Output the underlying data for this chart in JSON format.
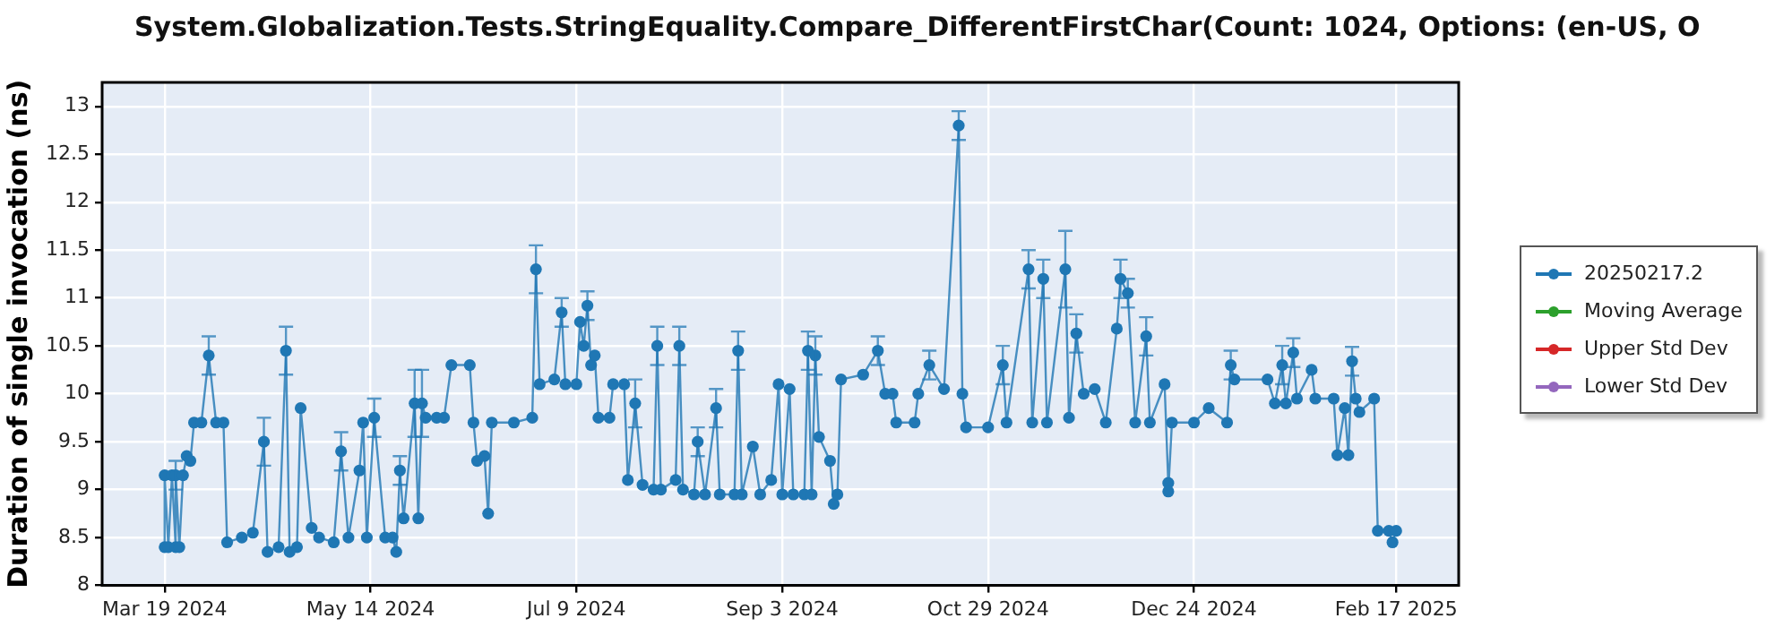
{
  "chart_data": {
    "type": "line",
    "title": "System.Globalization.Tests.StringEquality.Compare_DifferentFirstChar(Count: 1024, Options: (en-US, O",
    "ylabel": "Duration of single invocation (ns)",
    "x": [
      "2024-03-19",
      "2024-03-19",
      "2024-03-20",
      "2024-03-21",
      "2024-03-22",
      "2024-03-22",
      "2024-03-23",
      "2024-03-24",
      "2024-03-25",
      "2024-03-26",
      "2024-03-27",
      "2024-03-29",
      "2024-03-31",
      "2024-04-02",
      "2024-04-04",
      "2024-04-05",
      "2024-04-09",
      "2024-04-12",
      "2024-04-15",
      "2024-04-16",
      "2024-04-19",
      "2024-04-21",
      "2024-04-22",
      "2024-04-24",
      "2024-04-25",
      "2024-04-28",
      "2024-04-30",
      "2024-05-04",
      "2024-05-06",
      "2024-05-08",
      "2024-05-11",
      "2024-05-12",
      "2024-05-13",
      "2024-05-15",
      "2024-05-18",
      "2024-05-20",
      "2024-05-21",
      "2024-05-22",
      "2024-05-23",
      "2024-05-26",
      "2024-05-27",
      "2024-05-28",
      "2024-05-29",
      "2024-06-01",
      "2024-06-03",
      "2024-06-05",
      "2024-06-10",
      "2024-06-11",
      "2024-06-12",
      "2024-06-14",
      "2024-06-15",
      "2024-06-16",
      "2024-06-22",
      "2024-06-27",
      "2024-06-28",
      "2024-06-29",
      "2024-07-03",
      "2024-07-05",
      "2024-07-06",
      "2024-07-09",
      "2024-07-10",
      "2024-07-11",
      "2024-07-12",
      "2024-07-13",
      "2024-07-14",
      "2024-07-15",
      "2024-07-18",
      "2024-07-19",
      "2024-07-22",
      "2024-07-23",
      "2024-07-25",
      "2024-07-27",
      "2024-07-30",
      "2024-07-31",
      "2024-08-01",
      "2024-08-05",
      "2024-08-06",
      "2024-08-07",
      "2024-08-10",
      "2024-08-11",
      "2024-08-13",
      "2024-08-16",
      "2024-08-17",
      "2024-08-21",
      "2024-08-22",
      "2024-08-23",
      "2024-08-26",
      "2024-08-28",
      "2024-08-31",
      "2024-09-02",
      "2024-09-03",
      "2024-09-05",
      "2024-09-06",
      "2024-09-09",
      "2024-09-10",
      "2024-09-11",
      "2024-09-12",
      "2024-09-13",
      "2024-09-16",
      "2024-09-17",
      "2024-09-18",
      "2024-09-19",
      "2024-09-25",
      "2024-09-29",
      "2024-10-01",
      "2024-10-03",
      "2024-10-04",
      "2024-10-09",
      "2024-10-10",
      "2024-10-13",
      "2024-10-17",
      "2024-10-21",
      "2024-10-22",
      "2024-10-23",
      "2024-10-29",
      "2024-11-02",
      "2024-11-03",
      "2024-11-09",
      "2024-11-10",
      "2024-11-13",
      "2024-11-14",
      "2024-11-19",
      "2024-11-20",
      "2024-11-22",
      "2024-11-24",
      "2024-11-27",
      "2024-11-30",
      "2024-12-03",
      "2024-12-04",
      "2024-12-06",
      "2024-12-08",
      "2024-12-11",
      "2024-12-12",
      "2024-12-16",
      "2024-12-17",
      "2024-12-17",
      "2024-12-18",
      "2024-12-24",
      "2024-12-28",
      "2025-01-02",
      "2025-01-03",
      "2025-01-04",
      "2025-01-13",
      "2025-01-15",
      "2025-01-17",
      "2025-01-18",
      "2025-01-20",
      "2025-01-21",
      "2025-01-25",
      "2025-01-26",
      "2025-01-31",
      "2025-02-01",
      "2025-02-03",
      "2025-02-04",
      "2025-02-05",
      "2025-02-06",
      "2025-02-07",
      "2025-02-11",
      "2025-02-12",
      "2025-02-15",
      "2025-02-16",
      "2025-02-17"
    ],
    "series": [
      {
        "name": "20250217.2",
        "color": "#1f77b4",
        "values": [
          8.4,
          9.15,
          8.4,
          9.15,
          8.4,
          9.15,
          8.4,
          9.15,
          9.35,
          9.3,
          9.7,
          9.7,
          10.4,
          9.7,
          9.7,
          8.45,
          8.5,
          8.55,
          9.5,
          8.35,
          8.4,
          10.45,
          8.35,
          8.4,
          9.85,
          8.6,
          8.5,
          8.45,
          9.4,
          8.5,
          9.2,
          9.7,
          8.5,
          9.75,
          8.5,
          8.5,
          8.35,
          9.2,
          8.7,
          9.9,
          8.7,
          9.9,
          9.75,
          9.75,
          9.75,
          10.3,
          10.3,
          9.7,
          9.3,
          9.35,
          8.75,
          9.7,
          9.7,
          9.75,
          11.3,
          10.1,
          10.15,
          10.85,
          10.1,
          10.1,
          10.75,
          10.5,
          10.92,
          10.3,
          10.4,
          9.75,
          9.75,
          10.1,
          10.1,
          9.1,
          9.9,
          9.05,
          9.0,
          10.5,
          9.0,
          9.1,
          10.5,
          9.0,
          8.95,
          9.5,
          8.95,
          9.85,
          8.95,
          8.95,
          10.45,
          8.95,
          9.45,
          8.95,
          9.1,
          10.1,
          8.95,
          10.05,
          8.95,
          8.95,
          10.45,
          8.95,
          10.4,
          9.55,
          9.3,
          8.85,
          8.95,
          10.15,
          10.2,
          10.45,
          10.0,
          10.0,
          9.7,
          9.7,
          10.0,
          10.3,
          10.05,
          12.8,
          10.0,
          9.65,
          9.65,
          10.3,
          9.7,
          11.3,
          9.7,
          11.2,
          9.7,
          11.3,
          9.75,
          10.63,
          10.0,
          10.05,
          9.7,
          10.68,
          11.2,
          11.05,
          9.7,
          10.6,
          9.7,
          10.1,
          9.07,
          8.98,
          9.7,
          9.7,
          9.85,
          9.7,
          10.3,
          10.15,
          10.15,
          9.9,
          10.3,
          9.9,
          10.43,
          9.95,
          10.25,
          9.95,
          9.95,
          9.36,
          9.85,
          9.36,
          10.34,
          9.95,
          9.81,
          9.95,
          8.57,
          8.57,
          8.45,
          8.57
        ],
        "errors": [
          null,
          null,
          null,
          null,
          null,
          0.15,
          null,
          null,
          null,
          null,
          null,
          null,
          0.2,
          null,
          null,
          null,
          null,
          null,
          0.25,
          null,
          null,
          0.25,
          null,
          null,
          null,
          null,
          null,
          null,
          0.2,
          null,
          null,
          null,
          null,
          0.2,
          null,
          null,
          null,
          0.15,
          null,
          0.35,
          null,
          0.35,
          null,
          null,
          null,
          null,
          null,
          null,
          null,
          null,
          null,
          null,
          null,
          null,
          0.25,
          null,
          null,
          0.15,
          null,
          null,
          null,
          null,
          0.15,
          null,
          null,
          null,
          null,
          null,
          null,
          null,
          0.25,
          null,
          null,
          0.2,
          null,
          null,
          0.2,
          null,
          null,
          0.15,
          null,
          0.2,
          null,
          null,
          0.2,
          null,
          null,
          null,
          null,
          null,
          null,
          null,
          null,
          null,
          0.2,
          null,
          0.2,
          null,
          null,
          null,
          null,
          null,
          null,
          0.15,
          null,
          null,
          null,
          null,
          null,
          0.15,
          null,
          0.15,
          null,
          null,
          null,
          0.2,
          null,
          0.2,
          null,
          0.2,
          null,
          0.4,
          null,
          0.2,
          null,
          null,
          null,
          null,
          0.2,
          0.15,
          null,
          0.2,
          null,
          null,
          null,
          null,
          null,
          null,
          null,
          null,
          0.15,
          null,
          null,
          null,
          0.2,
          null,
          0.15,
          null,
          null,
          null,
          null,
          null,
          null,
          null,
          0.15,
          null,
          null,
          null,
          null,
          null,
          null,
          null
        ]
      },
      {
        "name": "Moving Average",
        "color": "#2ca02c",
        "values": [
          null,
          null,
          null,
          null,
          null,
          null,
          null,
          null,
          null,
          null,
          null,
          null,
          null,
          null,
          null,
          null,
          null,
          null,
          null,
          null,
          null,
          null,
          null,
          null,
          null,
          null,
          null,
          null,
          null,
          null,
          null,
          null,
          null,
          null,
          null,
          null,
          null,
          null,
          null,
          null,
          null,
          null,
          null,
          null,
          null,
          null,
          null,
          null,
          null,
          null,
          null,
          null,
          null,
          null,
          null,
          null,
          null,
          null,
          null,
          null,
          null,
          null,
          null,
          null,
          null,
          null,
          null,
          null,
          null,
          null,
          null,
          null,
          null,
          null,
          null,
          null,
          null,
          null,
          null,
          null,
          null,
          null,
          null,
          null,
          null,
          null,
          null,
          null,
          null,
          null,
          null,
          null,
          null,
          null,
          null,
          null,
          null,
          null,
          null,
          null,
          null,
          null,
          null,
          null,
          null,
          null,
          null,
          null,
          null,
          null,
          null,
          null,
          null,
          null,
          null,
          null,
          null,
          null,
          null,
          null,
          null,
          null,
          null,
          null,
          null,
          null,
          null,
          null,
          null,
          null,
          null,
          null,
          null,
          null,
          null,
          null,
          null,
          null,
          null,
          null,
          null,
          null,
          null,
          null,
          null,
          null,
          null,
          null,
          null,
          null,
          null,
          null,
          null,
          null,
          null,
          null,
          null,
          null,
          null,
          null,
          null,
          null
        ]
      },
      {
        "name": "Upper Std Dev",
        "color": "#d62728",
        "values": [
          null,
          null,
          null,
          null,
          null,
          null,
          null,
          null,
          null,
          null,
          null,
          null,
          null,
          null,
          null,
          null,
          null,
          null,
          null,
          null,
          null,
          null,
          null,
          null,
          null,
          null,
          null,
          null,
          null,
          null,
          null,
          null,
          null,
          null,
          null,
          null,
          null,
          null,
          null,
          null,
          null,
          null,
          null,
          null,
          null,
          null,
          null,
          null,
          null,
          null,
          null,
          null,
          null,
          null,
          null,
          null,
          null,
          null,
          null,
          null,
          null,
          null,
          null,
          null,
          null,
          null,
          null,
          null,
          null,
          null,
          null,
          null,
          null,
          null,
          null,
          null,
          null,
          null,
          null,
          null,
          null,
          null,
          null,
          null,
          null,
          null,
          null,
          null,
          null,
          null,
          null,
          null,
          null,
          null,
          null,
          null,
          null,
          null,
          null,
          null,
          null,
          null,
          null,
          null,
          null,
          null,
          null,
          null,
          null,
          null,
          null,
          null,
          null,
          null,
          null,
          null,
          null,
          null,
          null,
          null,
          null,
          null,
          null,
          null,
          null,
          null,
          null,
          null,
          null,
          null,
          null,
          null,
          null,
          null,
          null,
          null,
          null,
          null,
          null,
          null,
          null,
          null,
          null,
          null,
          null,
          null,
          null,
          null,
          null,
          null,
          null,
          null,
          null,
          null,
          null,
          null,
          null,
          null,
          null,
          null,
          null,
          null
        ]
      },
      {
        "name": "Lower Std Dev",
        "color": "#9467bd",
        "values": [
          null,
          null,
          null,
          null,
          null,
          null,
          null,
          null,
          null,
          null,
          null,
          null,
          null,
          null,
          null,
          null,
          null,
          null,
          null,
          null,
          null,
          null,
          null,
          null,
          null,
          null,
          null,
          null,
          null,
          null,
          null,
          null,
          null,
          null,
          null,
          null,
          null,
          null,
          null,
          null,
          null,
          null,
          null,
          null,
          null,
          null,
          null,
          null,
          null,
          null,
          null,
          null,
          null,
          null,
          null,
          null,
          null,
          null,
          null,
          null,
          null,
          null,
          null,
          null,
          null,
          null,
          null,
          null,
          null,
          null,
          null,
          null,
          null,
          null,
          null,
          null,
          null,
          null,
          null,
          null,
          null,
          null,
          null,
          null,
          null,
          null,
          null,
          null,
          null,
          null,
          null,
          null,
          null,
          null,
          null,
          null,
          null,
          null,
          null,
          null,
          null,
          null,
          null,
          null,
          null,
          null,
          null,
          null,
          null,
          null,
          null,
          null,
          null,
          null,
          null,
          null,
          null,
          null,
          null,
          null,
          null,
          null,
          null,
          null,
          null,
          null,
          null,
          null,
          null,
          null,
          null,
          null,
          null,
          null,
          null,
          null,
          null,
          null,
          null,
          null,
          null,
          null,
          null,
          null,
          null,
          null,
          null,
          null,
          null,
          null,
          null,
          null,
          null,
          null,
          null,
          null,
          null,
          null,
          null,
          null,
          null,
          null
        ]
      }
    ],
    "xlim": [
      "2024-03-02",
      "2025-03-06"
    ],
    "xticks": [
      {
        "value": "2024-03-19",
        "label": "Mar 19 2024"
      },
      {
        "value": "2024-05-14",
        "label": "May 14 2024"
      },
      {
        "value": "2024-07-09",
        "label": "Jul 9 2024"
      },
      {
        "value": "2024-09-03",
        "label": "Sep 3 2024"
      },
      {
        "value": "2024-10-29",
        "label": "Oct 29 2024"
      },
      {
        "value": "2024-12-24",
        "label": "Dec 24 2024"
      },
      {
        "value": "2025-02-17",
        "label": "Feb 17 2025"
      }
    ],
    "ylim": [
      8,
      13.25
    ],
    "yticks": [
      8,
      8.5,
      9,
      9.5,
      10,
      10.5,
      11,
      11.5,
      12,
      12.5,
      13
    ],
    "grid": true,
    "legend": "right",
    "marker": "circle"
  }
}
